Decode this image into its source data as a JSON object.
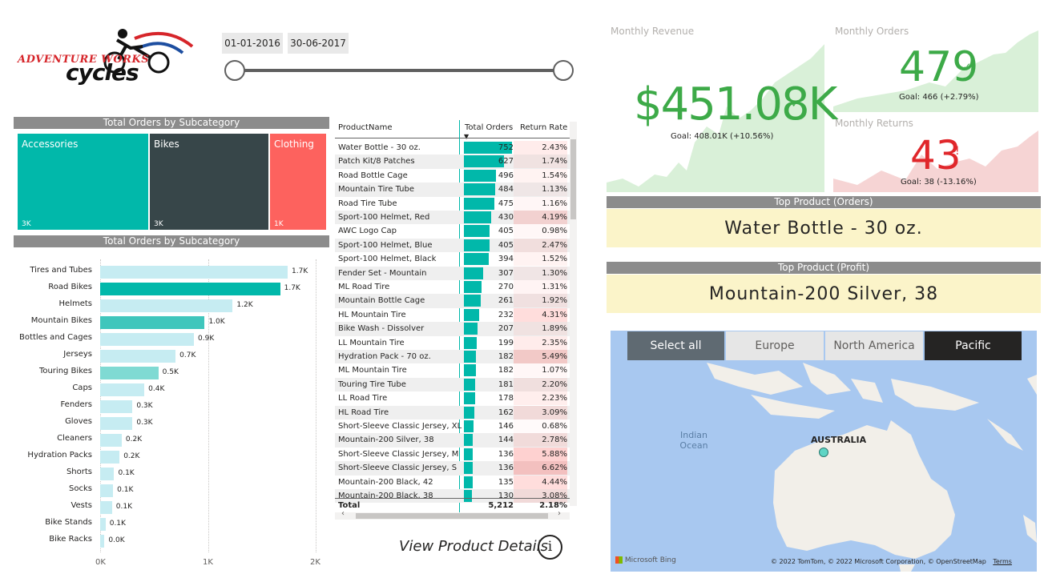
{
  "logo": {
    "line1": "ADVENTURE WORKS",
    "line2": "cycles"
  },
  "date_slider": {
    "start": "01-01-2016",
    "end": "30-06-2017"
  },
  "treemap": {
    "title": "Total Orders by Subcategory",
    "items": [
      {
        "label": "Accessories",
        "value": "3K",
        "color": "#01b8aa"
      },
      {
        "label": "Bikes",
        "value": "3K",
        "color": "#374649"
      },
      {
        "label": "Clothing",
        "value": "1K",
        "color": "#fd625e"
      }
    ]
  },
  "bar_chart": {
    "title": "Total Orders by Subcategory",
    "axis_ticks": [
      "0K",
      "1K",
      "2K"
    ]
  },
  "chart_data": {
    "type": "bar",
    "orientation": "horizontal",
    "categories": [
      "Tires and Tubes",
      "Road Bikes",
      "Helmets",
      "Mountain Bikes",
      "Bottles and Cages",
      "Jerseys",
      "Touring Bikes",
      "Caps",
      "Fenders",
      "Gloves",
      "Cleaners",
      "Hydration Packs",
      "Shorts",
      "Socks",
      "Vests",
      "Bike Stands",
      "Bike Racks"
    ],
    "values": [
      1740,
      1670,
      1230,
      970,
      870,
      700,
      540,
      410,
      300,
      300,
      200,
      180,
      130,
      120,
      110,
      50,
      40
    ],
    "labels": [
      "1.7K",
      "1.7K",
      "1.2K",
      "1.0K",
      "0.9K",
      "0.7K",
      "0.5K",
      "0.4K",
      "0.3K",
      "0.3K",
      "0.2K",
      "0.2K",
      "0.1K",
      "0.1K",
      "0.1K",
      "0.1K",
      "0.0K"
    ],
    "xlim": [
      0,
      2000
    ],
    "colors": {
      "default": "#c6ecf2",
      "road_bikes": "#01b8aa",
      "mountain_bikes": "#3fc6bc",
      "touring_bikes": "#7fdad3"
    }
  },
  "product_table": {
    "headers": [
      "ProductName",
      "Total Orders",
      "Return Rate"
    ],
    "rows": [
      {
        "name": "Water Bottle - 30 oz.",
        "orders": "752",
        "rate": "2.43%",
        "orders_val": 752
      },
      {
        "name": "Patch Kit/8 Patches",
        "orders": "627",
        "rate": "1.74%",
        "orders_val": 627
      },
      {
        "name": "Road Bottle Cage",
        "orders": "496",
        "rate": "1.54%",
        "orders_val": 496
      },
      {
        "name": "Mountain Tire Tube",
        "orders": "484",
        "rate": "1.13%",
        "orders_val": 484
      },
      {
        "name": "Road Tire Tube",
        "orders": "475",
        "rate": "1.16%",
        "orders_val": 475
      },
      {
        "name": "Sport-100 Helmet, Red",
        "orders": "430",
        "rate": "4.19%",
        "orders_val": 430
      },
      {
        "name": "AWC Logo Cap",
        "orders": "405",
        "rate": "0.98%",
        "orders_val": 405
      },
      {
        "name": "Sport-100 Helmet, Blue",
        "orders": "405",
        "rate": "2.47%",
        "orders_val": 405
      },
      {
        "name": "Sport-100 Helmet, Black",
        "orders": "394",
        "rate": "1.52%",
        "orders_val": 394
      },
      {
        "name": "Fender Set - Mountain",
        "orders": "307",
        "rate": "1.30%",
        "orders_val": 307
      },
      {
        "name": "ML Road Tire",
        "orders": "270",
        "rate": "1.31%",
        "orders_val": 270
      },
      {
        "name": "Mountain Bottle Cage",
        "orders": "261",
        "rate": "1.92%",
        "orders_val": 261
      },
      {
        "name": "HL Mountain Tire",
        "orders": "232",
        "rate": "4.31%",
        "orders_val": 232
      },
      {
        "name": "Bike Wash - Dissolver",
        "orders": "207",
        "rate": "1.89%",
        "orders_val": 207
      },
      {
        "name": "LL Mountain Tire",
        "orders": "199",
        "rate": "2.35%",
        "orders_val": 199
      },
      {
        "name": "Hydration Pack - 70 oz.",
        "orders": "182",
        "rate": "5.49%",
        "orders_val": 182
      },
      {
        "name": "ML Mountain Tire",
        "orders": "182",
        "rate": "1.07%",
        "orders_val": 182
      },
      {
        "name": "Touring Tire Tube",
        "orders": "181",
        "rate": "2.20%",
        "orders_val": 181
      },
      {
        "name": "LL Road Tire",
        "orders": "178",
        "rate": "2.23%",
        "orders_val": 178
      },
      {
        "name": "HL Road Tire",
        "orders": "162",
        "rate": "3.09%",
        "orders_val": 162
      },
      {
        "name": "Short-Sleeve Classic Jersey, XL",
        "orders": "146",
        "rate": "0.68%",
        "orders_val": 146
      },
      {
        "name": "Mountain-200 Silver, 38",
        "orders": "144",
        "rate": "2.78%",
        "orders_val": 144
      },
      {
        "name": "Short-Sleeve Classic Jersey, M",
        "orders": "136",
        "rate": "5.88%",
        "orders_val": 136
      },
      {
        "name": "Short-Sleeve Classic Jersey, S",
        "orders": "136",
        "rate": "6.62%",
        "orders_val": 136
      },
      {
        "name": "Mountain-200 Black, 42",
        "orders": "135",
        "rate": "4.44%",
        "orders_val": 135
      },
      {
        "name": "Mountain-200 Black, 38",
        "orders": "130",
        "rate": "3.08%",
        "orders_val": 130
      }
    ],
    "total": {
      "label": "Total",
      "orders": "5,212",
      "rate": "2.18%"
    }
  },
  "view_details": {
    "label": "View Product Details"
  },
  "kpi": {
    "revenue": {
      "label": "Monthly Revenue",
      "value": "$451.08K",
      "goal": "Goal: 408.01K (+10.56%)"
    },
    "orders": {
      "label": "Monthly Orders",
      "value": "479",
      "goal": "Goal: 466 (+2.79%)"
    },
    "returns": {
      "label": "Monthly Returns",
      "value": "43",
      "goal": "Goal: 38 (-13.16%)"
    }
  },
  "top_orders": {
    "title": "Top Product (Orders)",
    "value": "Water Bottle - 30 oz."
  },
  "top_profit": {
    "title": "Top Product (Profit)",
    "value": "Mountain-200 Silver, 38"
  },
  "region_slicer": {
    "items": [
      "Select all",
      "Europe",
      "North America",
      "Pacific"
    ],
    "selected": "Pacific"
  },
  "map": {
    "ocean_label": "Indian Ocean",
    "country_label": "AUSTRALIA",
    "brand": "Microsoft Bing",
    "attribution": "© 2022 TomTom, © 2022 Microsoft Corporation, © OpenStreetMap",
    "terms": "Terms"
  }
}
